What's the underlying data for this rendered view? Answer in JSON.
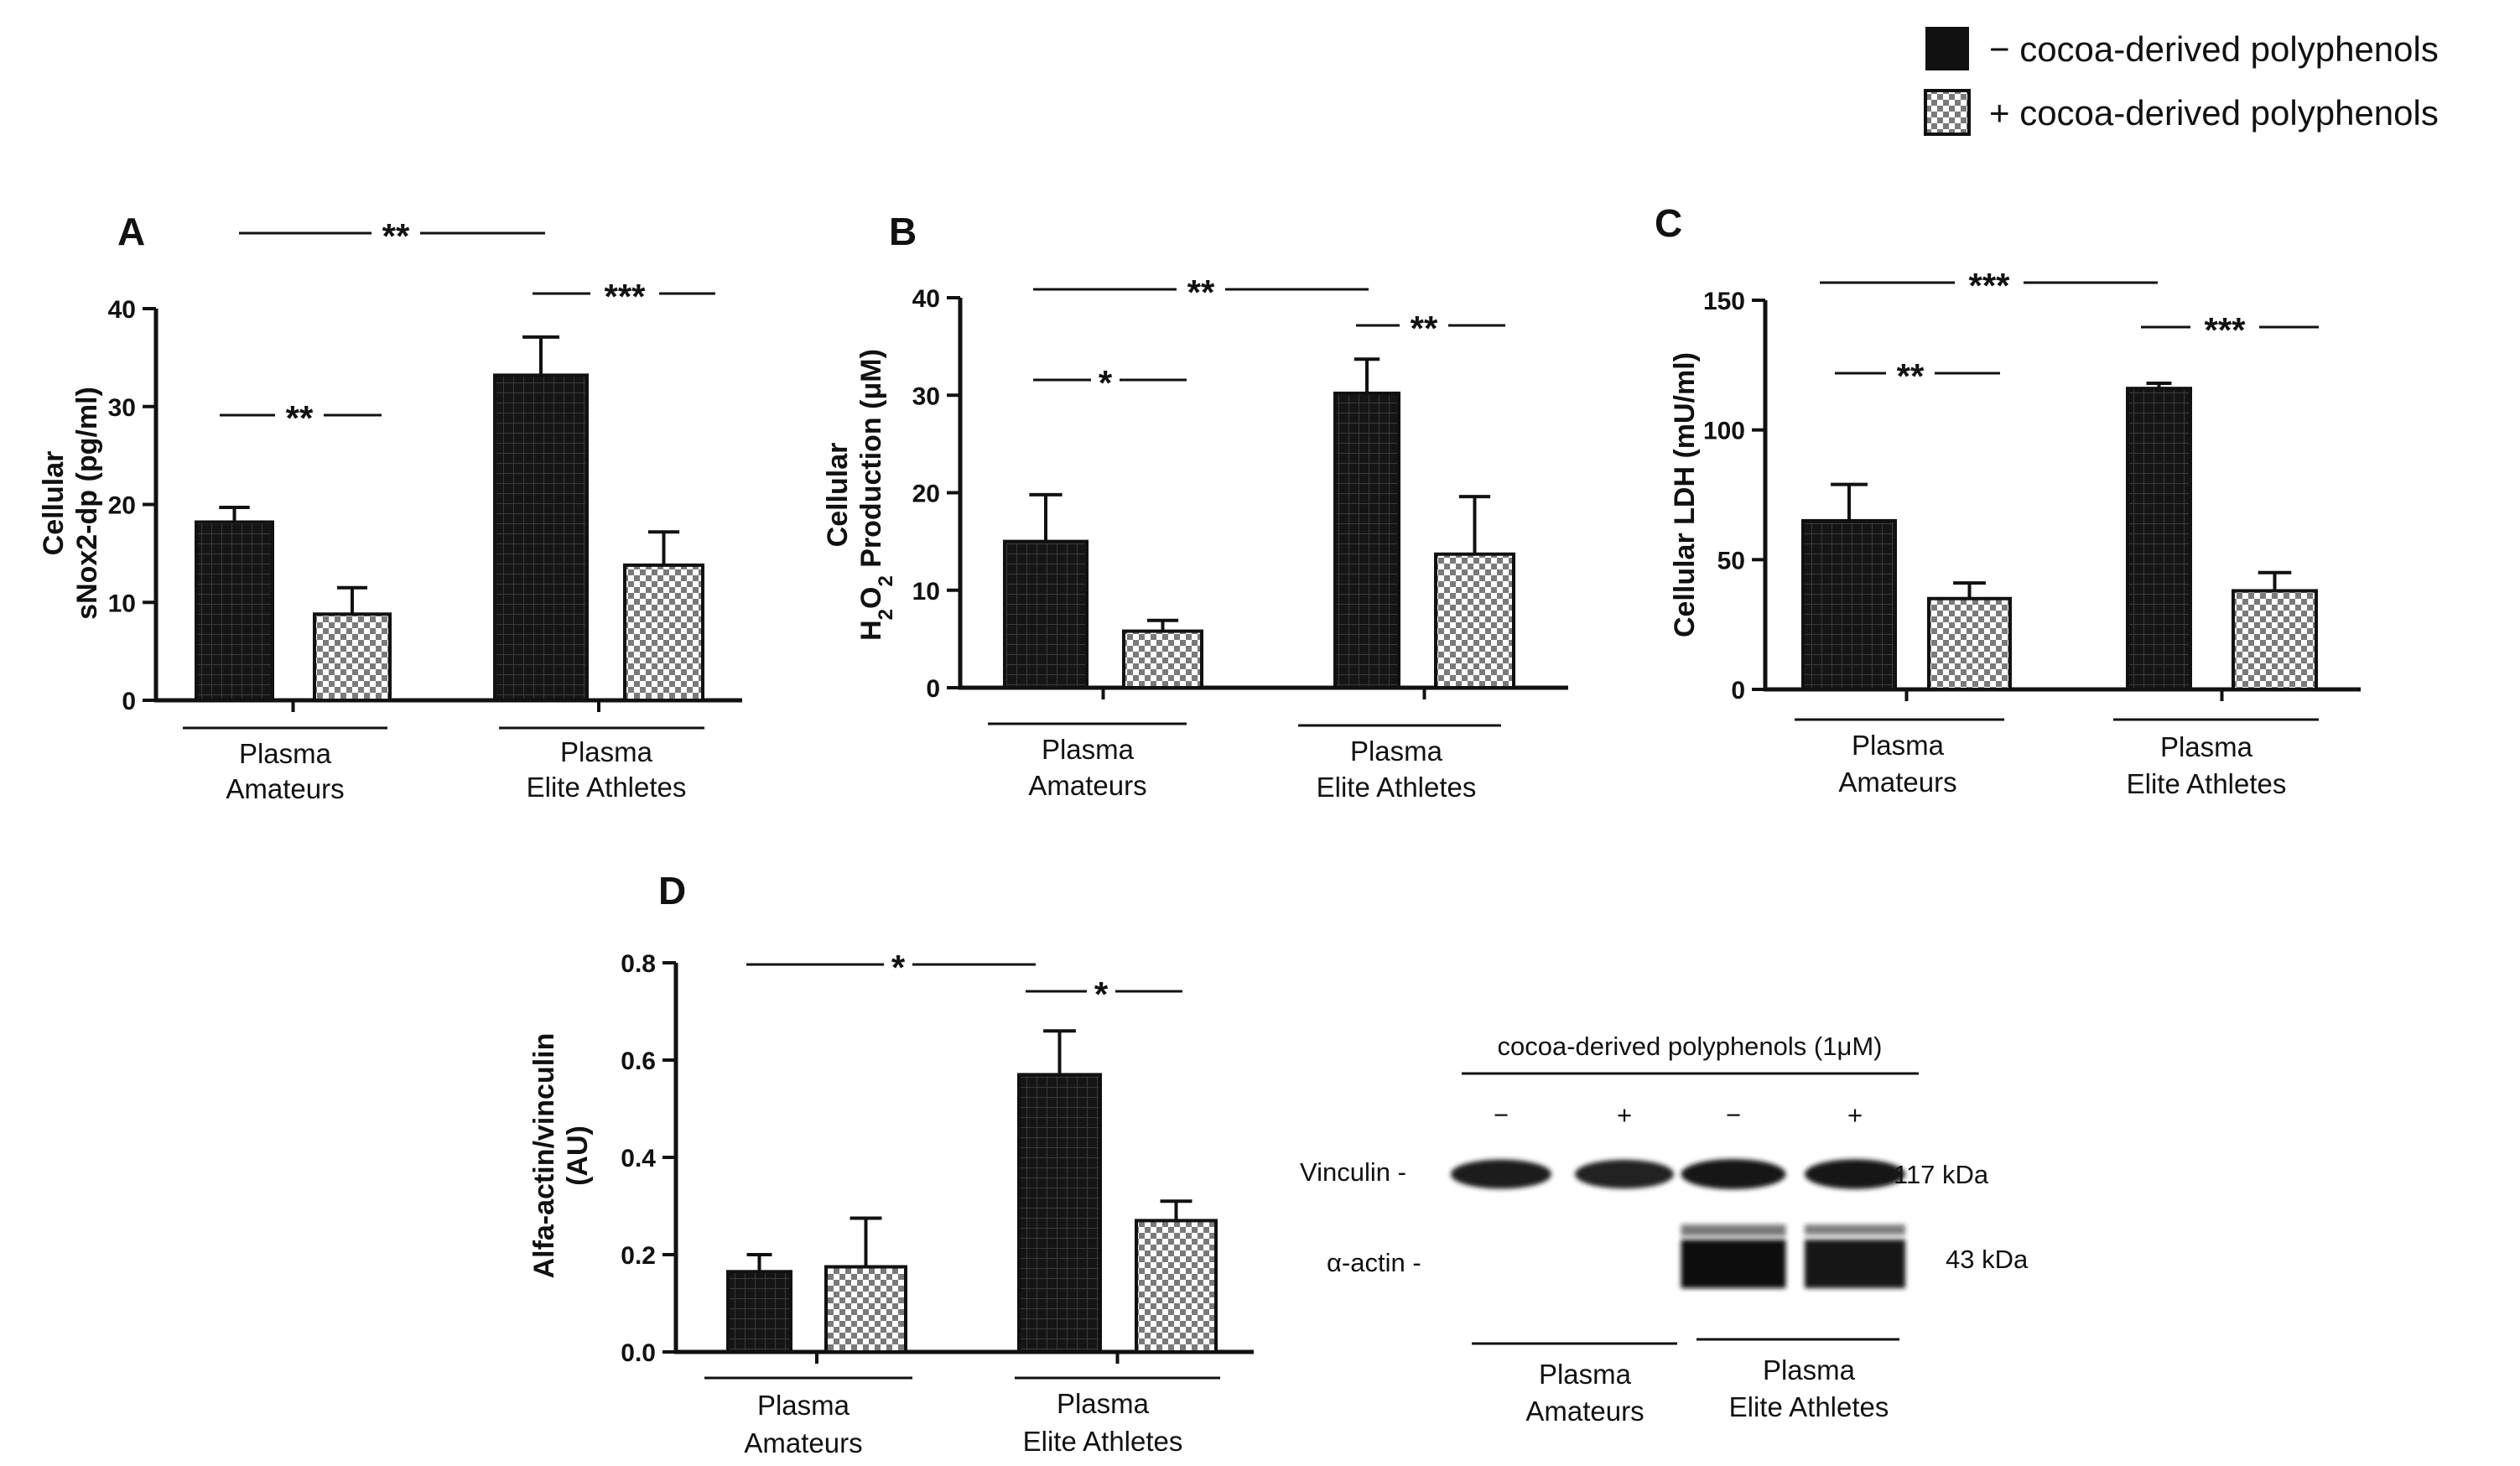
{
  "legend": {
    "items": [
      {
        "label": "− cocoa-derived polyphenols",
        "pattern": "solid"
      },
      {
        "label": "+ cocoa-derived polyphenols",
        "pattern": "checker"
      }
    ]
  },
  "colors": {
    "bar_dark": "#151515",
    "grid_line": "#3a3a3a",
    "axis": "#111111",
    "checker_light": "#ffffff",
    "checker_dark": "#7a7a7a"
  },
  "chart_data": [
    {
      "type": "bar",
      "panel": "A",
      "ylabel_lines": [
        "Cellular",
        "sNox2-dp (pg/ml)"
      ],
      "ylim": [
        0,
        40
      ],
      "yticks": [
        0,
        10,
        20,
        30,
        40
      ],
      "group_labels": [
        [
          "Plasma",
          "Amateurs"
        ],
        [
          "Plasma",
          "Elite Athletes"
        ]
      ],
      "series": [
        {
          "name": "− cocoa-derived polyphenols",
          "values": [
            18.2,
            33.2
          ],
          "errors": [
            1.5,
            3.9
          ]
        },
        {
          "name": "+ cocoa-derived polyphenols",
          "values": [
            8.8,
            13.8
          ],
          "errors": [
            2.7,
            3.4
          ]
        }
      ],
      "significance": [
        {
          "label": "**",
          "between": "Amateurs − vs +"
        },
        {
          "label": "***",
          "between": "Elite Athletes − vs +"
        },
        {
          "label": "**",
          "between": "Amateurs − vs Elite Athletes −"
        }
      ]
    },
    {
      "type": "bar",
      "panel": "B",
      "ylabel_lines": [
        "Cellular",
        "H2O2 Production (μM)"
      ],
      "ylim": [
        0,
        40
      ],
      "yticks": [
        0,
        10,
        20,
        30,
        40
      ],
      "group_labels": [
        [
          "Plasma",
          "Amateurs"
        ],
        [
          "Plasma",
          "Elite Athletes"
        ]
      ],
      "series": [
        {
          "name": "− cocoa-derived polyphenols",
          "values": [
            15.0,
            30.2
          ],
          "errors": [
            4.8,
            3.5
          ]
        },
        {
          "name": "+ cocoa-derived polyphenols",
          "values": [
            5.8,
            13.7
          ],
          "errors": [
            1.1,
            5.9
          ]
        }
      ],
      "significance": [
        {
          "label": "*",
          "between": "Amateurs − vs +"
        },
        {
          "label": "**",
          "between": "Elite Athletes − vs +"
        },
        {
          "label": "**",
          "between": "Amateurs − vs Elite Athletes −"
        }
      ]
    },
    {
      "type": "bar",
      "panel": "C",
      "ylabel_lines": [
        "Cellular LDH (mU/ml)"
      ],
      "ylim": [
        0,
        150
      ],
      "yticks": [
        0,
        50,
        100,
        150
      ],
      "group_labels": [
        [
          "Plasma",
          "Amateurs"
        ],
        [
          "Plasma",
          "Elite Athletes"
        ]
      ],
      "series": [
        {
          "name": "− cocoa-derived polyphenols",
          "values": [
            65,
            116
          ],
          "errors": [
            14,
            2
          ]
        },
        {
          "name": "+ cocoa-derived polyphenols",
          "values": [
            35,
            38
          ],
          "errors": [
            6,
            7
          ]
        }
      ],
      "significance": [
        {
          "label": "**",
          "between": "Amateurs − vs +"
        },
        {
          "label": "***",
          "between": "Elite Athletes − vs +"
        },
        {
          "label": "***",
          "between": "Amateurs − vs Elite Athletes −"
        }
      ]
    },
    {
      "type": "bar",
      "panel": "D",
      "ylabel_lines": [
        "Alfa-actin/vinculin",
        "(AU)"
      ],
      "ylim": [
        0,
        0.8
      ],
      "yticks": [
        0.0,
        0.2,
        0.4,
        0.6,
        0.8
      ],
      "group_labels": [
        [
          "Plasma",
          "Amateurs"
        ],
        [
          "Plasma",
          "Elite Athletes"
        ]
      ],
      "series": [
        {
          "name": "− cocoa-derived polyphenols",
          "values": [
            0.165,
            0.57
          ],
          "errors": [
            0.035,
            0.09
          ]
        },
        {
          "name": "+ cocoa-derived polyphenols",
          "values": [
            0.175,
            0.27
          ],
          "errors": [
            0.1,
            0.04
          ]
        }
      ],
      "significance": [
        {
          "label": "*",
          "between": "Elite Athletes − vs +"
        },
        {
          "label": "*",
          "between": "Amateurs − vs Elite Athletes −"
        }
      ]
    }
  ],
  "western_blot": {
    "header": "cocoa-derived polyphenols (1μM)",
    "lanes": [
      "−",
      "+",
      "−",
      "+"
    ],
    "rows": [
      {
        "label": "Vinculin -",
        "size": "117 kDa",
        "intensity": [
          0.9,
          0.85,
          1.0,
          0.95
        ]
      },
      {
        "label": "α-actin  -",
        "size": "43 kDa",
        "intensity": [
          0.0,
          0.0,
          1.0,
          0.9
        ]
      }
    ],
    "group_labels": [
      [
        "Plasma",
        "Amateurs"
      ],
      [
        "Plasma",
        "Elite Athletes"
      ]
    ]
  }
}
